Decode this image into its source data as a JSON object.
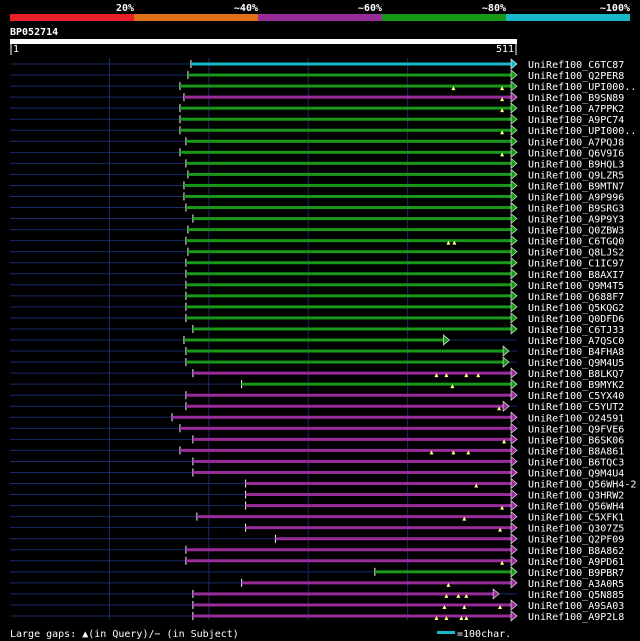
{
  "chart_data": {
    "type": "alignment-overview",
    "query_id": "BP052714",
    "query_start": "1",
    "query_end": "511",
    "query_length": 511,
    "legend_bins": [
      {
        "label": "20%",
        "color": "#e8202a"
      },
      {
        "label": "~40%",
        "color": "#e07018"
      },
      {
        "label": "~60%",
        "color": "#982c9a"
      },
      {
        "label": "~80%",
        "color": "#189818"
      },
      {
        "label": "~100%",
        "color": "#18b8c8"
      }
    ],
    "colors": {
      "query_bar": "#ffffff",
      "line_dim": "#1a2a6a",
      "grid": "#1a2a6a",
      "text": "#ffffff",
      "gap_marker": "#ffff80"
    },
    "hits": [
      {
        "name": "UniRef100_C6TC87",
        "start": 183,
        "end": 511,
        "identity": "~100%",
        "gaps": []
      },
      {
        "name": "UniRef100_Q2PER8",
        "start": 180,
        "end": 511,
        "identity": "~80%",
        "gaps": []
      },
      {
        "name": "UniRef100_UPI000..",
        "start": 172,
        "end": 511,
        "identity": "~80%",
        "gaps": [
          447,
          496
        ]
      },
      {
        "name": "UniRef100_B9SN89",
        "start": 176,
        "end": 511,
        "identity": "~60%",
        "gaps": [
          496
        ]
      },
      {
        "name": "UniRef100_A7PPK2",
        "start": 172,
        "end": 511,
        "identity": "~80%",
        "gaps": [
          496
        ]
      },
      {
        "name": "UniRef100_A9PC74",
        "start": 172,
        "end": 511,
        "identity": "~80%",
        "gaps": []
      },
      {
        "name": "UniRef100_UPI000..",
        "start": 172,
        "end": 511,
        "identity": "~80%",
        "gaps": [
          496
        ]
      },
      {
        "name": "UniRef100_A7PQJ8",
        "start": 178,
        "end": 511,
        "identity": "~80%",
        "gaps": []
      },
      {
        "name": "UniRef100_Q6V9I6",
        "start": 172,
        "end": 511,
        "identity": "~80%",
        "gaps": [
          496
        ]
      },
      {
        "name": "UniRef100_B9HQL3",
        "start": 178,
        "end": 511,
        "identity": "~80%",
        "gaps": []
      },
      {
        "name": "UniRef100_Q9LZR5",
        "start": 180,
        "end": 511,
        "identity": "~80%",
        "gaps": []
      },
      {
        "name": "UniRef100_B9MTN7",
        "start": 176,
        "end": 511,
        "identity": "~80%",
        "gaps": []
      },
      {
        "name": "UniRef100_A9P996",
        "start": 176,
        "end": 511,
        "identity": "~80%",
        "gaps": []
      },
      {
        "name": "UniRef100_B9SRG3",
        "start": 178,
        "end": 511,
        "identity": "~80%",
        "gaps": []
      },
      {
        "name": "UniRef100_A9P9Y3",
        "start": 185,
        "end": 511,
        "identity": "~80%",
        "gaps": []
      },
      {
        "name": "UniRef100_Q0ZBW3",
        "start": 180,
        "end": 511,
        "identity": "~80%",
        "gaps": []
      },
      {
        "name": "UniRef100_C6TGQ0",
        "start": 178,
        "end": 511,
        "identity": "~80%",
        "gaps": [
          442,
          448
        ]
      },
      {
        "name": "UniRef100_Q8LJS2",
        "start": 180,
        "end": 511,
        "identity": "~80%",
        "gaps": []
      },
      {
        "name": "UniRef100_C1IC97",
        "start": 178,
        "end": 511,
        "identity": "~80%",
        "gaps": []
      },
      {
        "name": "UniRef100_B8AXI7",
        "start": 178,
        "end": 511,
        "identity": "~80%",
        "gaps": []
      },
      {
        "name": "UniRef100_Q9M4T5",
        "start": 178,
        "end": 511,
        "identity": "~80%",
        "gaps": []
      },
      {
        "name": "UniRef100_Q688F7",
        "start": 178,
        "end": 511,
        "identity": "~80%",
        "gaps": []
      },
      {
        "name": "UniRef100_Q5KQG2",
        "start": 178,
        "end": 511,
        "identity": "~80%",
        "gaps": []
      },
      {
        "name": "UniRef100_Q0DFD6",
        "start": 178,
        "end": 511,
        "identity": "~80%",
        "gaps": []
      },
      {
        "name": "UniRef100_C6TJ33",
        "start": 185,
        "end": 511,
        "identity": "~80%",
        "gaps": []
      },
      {
        "name": "UniRef100_A7QSC0",
        "start": 176,
        "end": 443,
        "identity": "~80%",
        "gaps": []
      },
      {
        "name": "UniRef100_B4FHA8",
        "start": 178,
        "end": 503,
        "identity": "~80%",
        "gaps": []
      },
      {
        "name": "UniRef100_Q9M4U5",
        "start": 178,
        "end": 503,
        "identity": "~80%",
        "gaps": []
      },
      {
        "name": "UniRef100_B8LKQ7",
        "start": 185,
        "end": 511,
        "identity": "~60%",
        "gaps": [
          430,
          440,
          460,
          472
        ]
      },
      {
        "name": "UniRef100_B9MYK2",
        "start": 234,
        "end": 511,
        "identity": "~80%",
        "gaps": [
          446
        ]
      },
      {
        "name": "UniRef100_C5YX40",
        "start": 178,
        "end": 511,
        "identity": "~60%",
        "gaps": []
      },
      {
        "name": "UniRef100_C5YUT2",
        "start": 178,
        "end": 503,
        "identity": "~60%",
        "gaps": [
          493
        ]
      },
      {
        "name": "UniRef100_O24591",
        "start": 164,
        "end": 511,
        "identity": "~60%",
        "gaps": []
      },
      {
        "name": "UniRef100_Q9FVE6",
        "start": 172,
        "end": 511,
        "identity": "~60%",
        "gaps": []
      },
      {
        "name": "UniRef100_B6SK06",
        "start": 185,
        "end": 511,
        "identity": "~60%",
        "gaps": [
          498
        ]
      },
      {
        "name": "UniRef100_B8A861",
        "start": 172,
        "end": 511,
        "identity": "~60%",
        "gaps": [
          425,
          447,
          462
        ]
      },
      {
        "name": "UniRef100_B6TQC3",
        "start": 185,
        "end": 511,
        "identity": "~60%",
        "gaps": []
      },
      {
        "name": "UniRef100_Q9M4U4",
        "start": 185,
        "end": 511,
        "identity": "~60%",
        "gaps": []
      },
      {
        "name": "UniRef100_Q56WH4-2",
        "start": 238,
        "end": 511,
        "identity": "~60%",
        "gaps": [
          470
        ]
      },
      {
        "name": "UniRef100_Q3HRW2",
        "start": 238,
        "end": 511,
        "identity": "~60%",
        "gaps": []
      },
      {
        "name": "UniRef100_Q56WH4",
        "start": 238,
        "end": 511,
        "identity": "~60%",
        "gaps": [
          496
        ]
      },
      {
        "name": "UniRef100_C5XFK1",
        "start": 189,
        "end": 511,
        "identity": "~60%",
        "gaps": [
          458
        ]
      },
      {
        "name": "UniRef100_Q307Z5",
        "start": 238,
        "end": 511,
        "identity": "~60%",
        "gaps": [
          494
        ]
      },
      {
        "name": "UniRef100_Q2PF09",
        "start": 268,
        "end": 511,
        "identity": "~60%",
        "gaps": []
      },
      {
        "name": "UniRef100_B8A862",
        "start": 178,
        "end": 511,
        "identity": "~60%",
        "gaps": []
      },
      {
        "name": "UniRef100_A9PD61",
        "start": 178,
        "end": 511,
        "identity": "~60%",
        "gaps": [
          496
        ]
      },
      {
        "name": "UniRef100_B9PBR7",
        "start": 368,
        "end": 511,
        "identity": "~80%",
        "gaps": []
      },
      {
        "name": "UniRef100_A3A0R5",
        "start": 234,
        "end": 511,
        "identity": "~60%",
        "gaps": [
          442
        ]
      },
      {
        "name": "UniRef100_Q5N885",
        "start": 185,
        "end": 493,
        "identity": "~60%",
        "gaps": [
          440,
          452,
          460
        ]
      },
      {
        "name": "UniRef100_A9SA03",
        "start": 185,
        "end": 511,
        "identity": "~60%",
        "gaps": [
          438,
          458,
          494
        ]
      },
      {
        "name": "UniRef100_A9P2L8",
        "start": 185,
        "end": 511,
        "identity": "~60%",
        "gaps": [
          430,
          440,
          455,
          460
        ]
      }
    ],
    "footer_legend": {
      "text": "Large gaps: ▲(in Query)/− (in Subject)",
      "scale_label": "=100char."
    }
  }
}
